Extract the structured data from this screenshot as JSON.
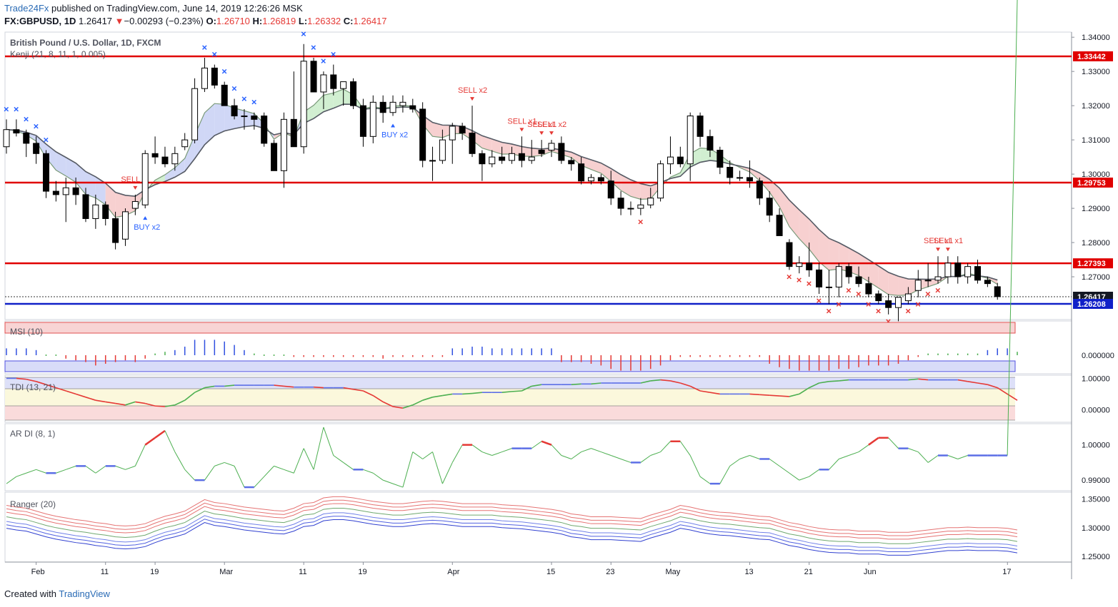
{
  "header": {
    "publisher": "Trade24Fx",
    "published_text": "published on TradingView.com, June 14, 2019 12:26:26 MSK",
    "symbol": "FX:GBPUSD, 1D",
    "last": "1.26417",
    "change_arrow": "▼",
    "change": "−0.00293 (−0.23%)",
    "o_label": "O:",
    "o_value": "1.26710",
    "h_label": "H:",
    "h_value": "1.26819",
    "l_label": "L:",
    "l_value": "1.26332",
    "c_label": "C:",
    "c_value": "1.26417"
  },
  "footer": {
    "created_with": "Created with",
    "brand": "TradingView"
  },
  "colors": {
    "level_red": "#e00000",
    "level_blue": "#1020c8",
    "bull_cloud": "#c9ecc9",
    "bear_cloud": "#f6c8c8",
    "blue_cloud": "#c8d0f4",
    "sell_marker": "#e53935",
    "buy_marker": "#2962ff"
  },
  "chart_data": [
    {
      "type": "candlestick",
      "title": "British Pound / U.S. Dollar, 1D, FXCM",
      "indicator_label": "Kenji (21, 8, 11, 1, 0.005)",
      "ylim": [
        1.2575,
        1.3415
      ],
      "y_ticks": [
        "1.34000",
        "1.33000",
        "1.32000",
        "1.31000",
        "1.30000",
        "1.29000",
        "1.28000",
        "1.27000"
      ],
      "x_ticks": [
        "Feb",
        "11",
        "19",
        "Mar",
        "11",
        "19",
        "Apr",
        "15",
        "23",
        "May",
        "13",
        "21",
        "Jun",
        "17"
      ],
      "levels": [
        {
          "label": "1.33442",
          "value": 1.33442,
          "color": "red"
        },
        {
          "label": "1.29753",
          "value": 1.29753,
          "color": "red"
        },
        {
          "label": "1.27393",
          "value": 1.27393,
          "color": "red"
        },
        {
          "label": "1.26417",
          "value": 1.26417,
          "color": "dark"
        },
        {
          "label": "1.26208",
          "value": 1.26208,
          "color": "blue"
        }
      ],
      "candles": [
        [
          1.308,
          1.316,
          1.306,
          1.313
        ],
        [
          1.313,
          1.316,
          1.311,
          1.312
        ],
        [
          1.312,
          1.313,
          1.305,
          1.309
        ],
        [
          1.309,
          1.311,
          1.303,
          1.306
        ],
        [
          1.306,
          1.307,
          1.293,
          1.295
        ],
        [
          1.295,
          1.298,
          1.292,
          1.294
        ],
        [
          1.294,
          1.299,
          1.286,
          1.296
        ],
        [
          1.296,
          1.299,
          1.291,
          1.294
        ],
        [
          1.294,
          1.296,
          1.286,
          1.287
        ],
        [
          1.287,
          1.294,
          1.284,
          1.291
        ],
        [
          1.291,
          1.292,
          1.285,
          1.287
        ],
        [
          1.287,
          1.289,
          1.278,
          1.28
        ],
        [
          1.281,
          1.29,
          1.279,
          1.289
        ],
        [
          1.29,
          1.294,
          1.288,
          1.292
        ],
        [
          1.291,
          1.307,
          1.29,
          1.306
        ],
        [
          1.306,
          1.311,
          1.303,
          1.305
        ],
        [
          1.305,
          1.308,
          1.302,
          1.303
        ],
        [
          1.303,
          1.308,
          1.301,
          1.306
        ],
        [
          1.308,
          1.312,
          1.307,
          1.31
        ],
        [
          1.31,
          1.328,
          1.309,
          1.325
        ],
        [
          1.325,
          1.334,
          1.324,
          1.331
        ],
        [
          1.331,
          1.332,
          1.325,
          1.326
        ],
        [
          1.326,
          1.327,
          1.32,
          1.32
        ],
        [
          1.32,
          1.322,
          1.316,
          1.317
        ],
        [
          1.317,
          1.319,
          1.313,
          1.317
        ],
        [
          1.317,
          1.318,
          1.313,
          1.316
        ],
        [
          1.317,
          1.318,
          1.308,
          1.309
        ],
        [
          1.309,
          1.31,
          1.301,
          1.301
        ],
        [
          1.301,
          1.318,
          1.296,
          1.316
        ],
        [
          1.316,
          1.33,
          1.308,
          1.308
        ],
        [
          1.308,
          1.338,
          1.306,
          1.333
        ],
        [
          1.333,
          1.334,
          1.324,
          1.324
        ],
        [
          1.324,
          1.33,
          1.319,
          1.329
        ],
        [
          1.329,
          1.332,
          1.323,
          1.325
        ],
        [
          1.325,
          1.327,
          1.32,
          1.327
        ],
        [
          1.327,
          1.328,
          1.319,
          1.32
        ],
        [
          1.32,
          1.322,
          1.308,
          1.311
        ],
        [
          1.311,
          1.323,
          1.309,
          1.321
        ],
        [
          1.321,
          1.323,
          1.315,
          1.318
        ],
        [
          1.318,
          1.323,
          1.317,
          1.321
        ],
        [
          1.32,
          1.323,
          1.318,
          1.321
        ],
        [
          1.32,
          1.322,
          1.318,
          1.319
        ],
        [
          1.319,
          1.321,
          1.302,
          1.304
        ],
        [
          1.304,
          1.308,
          1.298,
          1.304
        ],
        [
          1.304,
          1.313,
          1.303,
          1.31
        ],
        [
          1.31,
          1.315,
          1.303,
          1.314
        ],
        [
          1.314,
          1.315,
          1.31,
          1.312
        ],
        [
          1.312,
          1.32,
          1.305,
          1.306
        ],
        [
          1.306,
          1.307,
          1.298,
          1.303
        ],
        [
          1.303,
          1.307,
          1.302,
          1.305
        ],
        [
          1.305,
          1.308,
          1.303,
          1.304
        ],
        [
          1.304,
          1.308,
          1.303,
          1.306
        ],
        [
          1.306,
          1.311,
          1.302,
          1.304
        ],
        [
          1.304,
          1.31,
          1.303,
          1.305
        ],
        [
          1.307,
          1.31,
          1.305,
          1.306
        ],
        [
          1.307,
          1.31,
          1.305,
          1.309
        ],
        [
          1.309,
          1.311,
          1.303,
          1.304
        ],
        [
          1.304,
          1.305,
          1.301,
          1.303
        ],
        [
          1.303,
          1.305,
          1.297,
          1.298
        ],
        [
          1.298,
          1.3,
          1.297,
          1.299
        ],
        [
          1.299,
          1.3,
          1.297,
          1.298
        ],
        [
          1.298,
          1.301,
          1.291,
          1.293
        ],
        [
          1.293,
          1.295,
          1.288,
          1.29
        ],
        [
          1.29,
          1.292,
          1.288,
          1.29
        ],
        [
          1.29,
          1.293,
          1.288,
          1.291
        ],
        [
          1.291,
          1.296,
          1.29,
          1.293
        ],
        [
          1.293,
          1.304,
          1.292,
          1.303
        ],
        [
          1.303,
          1.311,
          1.3,
          1.305
        ],
        [
          1.305,
          1.308,
          1.302,
          1.303
        ],
        [
          1.303,
          1.318,
          1.298,
          1.317
        ],
        [
          1.317,
          1.318,
          1.308,
          1.311
        ],
        [
          1.311,
          1.313,
          1.305,
          1.307
        ],
        [
          1.307,
          1.308,
          1.3,
          1.302
        ],
        [
          1.302,
          1.304,
          1.297,
          1.299
        ],
        [
          1.299,
          1.301,
          1.298,
          1.299
        ],
        [
          1.299,
          1.304,
          1.296,
          1.298
        ],
        [
          1.298,
          1.299,
          1.291,
          1.293
        ],
        [
          1.293,
          1.295,
          1.286,
          1.288
        ],
        [
          1.288,
          1.29,
          1.282,
          1.282
        ],
        [
          1.28,
          1.281,
          1.272,
          1.273
        ],
        [
          1.273,
          1.276,
          1.271,
          1.274
        ],
        [
          1.274,
          1.28,
          1.27,
          1.272
        ],
        [
          1.272,
          1.274,
          1.265,
          1.267
        ],
        [
          1.267,
          1.272,
          1.262,
          1.267
        ],
        [
          1.267,
          1.274,
          1.264,
          1.273
        ],
        [
          1.273,
          1.274,
          1.268,
          1.27
        ],
        [
          1.27,
          1.273,
          1.267,
          1.268
        ],
        [
          1.268,
          1.27,
          1.264,
          1.265
        ],
        [
          1.265,
          1.266,
          1.262,
          1.263
        ],
        [
          1.263,
          1.265,
          1.259,
          1.261
        ],
        [
          1.261,
          1.264,
          1.257,
          1.264
        ],
        [
          1.263,
          1.267,
          1.262,
          1.265
        ],
        [
          1.266,
          1.272,
          1.264,
          1.269
        ],
        [
          1.269,
          1.274,
          1.267,
          1.269
        ],
        [
          1.269,
          1.276,
          1.268,
          1.27
        ],
        [
          1.27,
          1.276,
          1.268,
          1.274
        ],
        [
          1.274,
          1.276,
          1.268,
          1.27
        ],
        [
          1.27,
          1.274,
          1.268,
          1.273
        ],
        [
          1.273,
          1.275,
          1.268,
          1.269
        ],
        [
          1.269,
          1.27,
          1.267,
          1.268
        ],
        [
          1.2671,
          1.2682,
          1.2633,
          1.2642
        ]
      ],
      "annotations": [
        {
          "text": "SELL",
          "index": 13
        },
        {
          "text": "BUY x2",
          "index": 14
        },
        {
          "text": "BUY x2",
          "index": 39
        },
        {
          "text": "SELL x2",
          "index": 47
        },
        {
          "text": "SELL x1",
          "index": 52
        },
        {
          "text": "SELL x1",
          "index": 54
        },
        {
          "text": "SELL x2",
          "index": 55
        },
        {
          "text": "SELL x1",
          "index": 94
        },
        {
          "text": "SELL x1",
          "index": 95
        }
      ]
    },
    {
      "type": "bar",
      "title": "MSI (10)",
      "y_ticks": [
        "0.000000"
      ],
      "ylim": [
        -1,
        1
      ],
      "values": [
        0.4,
        0.4,
        0.4,
        0.3,
        0,
        0,
        -0.2,
        -0.3,
        -0.4,
        -0.6,
        -0.5,
        -0.4,
        -0.3,
        -0.4,
        -0.2,
        0.1,
        0.2,
        0.3,
        0.5,
        0.9,
        0.9,
        0.9,
        0.8,
        0.6,
        0.3,
        0.1,
        0,
        0,
        0,
        -0.1,
        -0.1,
        -0.1,
        -0.1,
        -0.1,
        -0.1,
        -0.1,
        -0.1,
        -0.1,
        -0.2,
        -0.1,
        -0.1,
        -0.1,
        -0.1,
        -0.1,
        -0.1,
        0.4,
        0.4,
        0.5,
        0.5,
        0.4,
        0.4,
        0.4,
        0.4,
        0.4,
        0.4,
        0.4,
        -0.4,
        -0.4,
        -0.4,
        -0.5,
        -0.6,
        -0.8,
        -0.9,
        -0.9,
        -0.9,
        -0.8,
        -0.6,
        -0.3,
        -0.1,
        -0.1,
        -0.1,
        -0.1,
        -0.1,
        -0.1,
        -0.1,
        -0.1,
        -0.1,
        -0.5,
        -0.7,
        -0.8,
        -0.9,
        -0.9,
        -0.9,
        -0.9,
        -0.8,
        -0.8,
        -0.7,
        -0.6,
        -0.6,
        -0.6,
        -0.5,
        -0.3,
        -0.1,
        0.1,
        0.1,
        0.1,
        0.1,
        0.1,
        0.1,
        0.3,
        0.4,
        0.4,
        0.2
      ]
    },
    {
      "type": "line",
      "title": "TDI (13, 21)",
      "y_ticks": [
        "1.00000",
        "0.00000"
      ],
      "ylim": [
        -0.4,
        1.1
      ],
      "values": [
        1,
        1,
        0.97,
        0.9,
        0.8,
        0.7,
        0.6,
        0.5,
        0.4,
        0.3,
        0.25,
        0.2,
        0.15,
        0.25,
        0.2,
        0.12,
        0.1,
        0.15,
        0.3,
        0.55,
        0.7,
        0.75,
        0.75,
        0.78,
        0.78,
        0.78,
        0.78,
        0.78,
        0.75,
        0.72,
        0.72,
        0.72,
        0.7,
        0.7,
        0.7,
        0.65,
        0.6,
        0.45,
        0.25,
        0.1,
        0.05,
        0.15,
        0.3,
        0.4,
        0.45,
        0.5,
        0.5,
        0.52,
        0.55,
        0.55,
        0.55,
        0.58,
        0.6,
        0.75,
        0.8,
        0.8,
        0.8,
        0.8,
        0.82,
        0.82,
        0.85,
        0.85,
        0.85,
        0.85,
        0.85,
        0.92,
        0.95,
        0.92,
        0.85,
        0.75,
        0.6,
        0.55,
        0.5,
        0.5,
        0.5,
        0.5,
        0.48,
        0.46,
        0.44,
        0.42,
        0.5,
        0.7,
        0.85,
        0.9,
        0.92,
        0.95,
        0.95,
        0.95,
        0.95,
        0.95,
        0.95,
        0.95,
        0.98,
        0.95,
        0.95,
        0.95,
        0.95,
        0.9,
        0.85,
        0.8,
        0.7,
        0.5,
        0.3
      ]
    },
    {
      "type": "line",
      "title": "AR DI (8, 1)",
      "y_ticks": [
        "1.00000",
        "0.99000"
      ],
      "ylim": [
        0.987,
        1.006
      ],
      "values": [
        0.989,
        0.991,
        0.992,
        0.993,
        0.992,
        0.992,
        0.993,
        0.994,
        0.994,
        0.992,
        0.994,
        0.994,
        0.993,
        0.994,
        1.0,
        1.002,
        1.004,
        0.998,
        0.993,
        0.99,
        0.99,
        0.994,
        0.995,
        0.994,
        0.988,
        0.988,
        0.991,
        0.994,
        0.993,
        0.992,
        0.999,
        0.993,
        1.005,
        0.997,
        0.995,
        0.993,
        0.993,
        0.992,
        0.99,
        0.989,
        0.988,
        0.998,
        0.996,
        0.998,
        0.989,
        0.995,
        1.0,
        1.0,
        0.998,
        0.997,
        0.998,
        0.999,
        0.999,
        0.999,
        1.001,
        1.0,
        0.997,
        0.996,
        0.998,
        0.999,
        0.998,
        0.997,
        0.996,
        0.995,
        0.995,
        0.997,
        0.998,
        1.001,
        1.001,
        0.997,
        0.991,
        0.989,
        0.989,
        0.994,
        0.996,
        0.997,
        0.996,
        0.996,
        0.994,
        0.992,
        0.99,
        0.991,
        0.993,
        0.993,
        0.996,
        0.997,
        0.998,
        1.0,
        1.002,
        1.002,
        0.999,
        0.999,
        0.998,
        0.995,
        0.997,
        0.997,
        0.996,
        0.997,
        0.997,
        0.997,
        0.997,
        0.997
      ]
    },
    {
      "type": "line",
      "title": "Ranger (20)",
      "y_ticks": [
        "1.35000",
        "1.30000",
        "1.25000"
      ],
      "ylim": [
        1.24,
        1.362
      ],
      "values": [
        1.315,
        1.312,
        1.31,
        1.305,
        1.3,
        1.296,
        1.293,
        1.29,
        1.288,
        1.285,
        1.283,
        1.28,
        1.279,
        1.28,
        1.283,
        1.29,
        1.296,
        1.3,
        1.305,
        1.315,
        1.325,
        1.32,
        1.318,
        1.315,
        1.312,
        1.31,
        1.308,
        1.306,
        1.305,
        1.31,
        1.318,
        1.32,
        1.328,
        1.33,
        1.33,
        1.328,
        1.325,
        1.322,
        1.32,
        1.318,
        1.318,
        1.32,
        1.322,
        1.323,
        1.322,
        1.32,
        1.318,
        1.318,
        1.318,
        1.318,
        1.316,
        1.315,
        1.314,
        1.312,
        1.31,
        1.308,
        1.305,
        1.3,
        1.298,
        1.295,
        1.295,
        1.295,
        1.294,
        1.293,
        1.292,
        1.298,
        1.303,
        1.308,
        1.315,
        1.312,
        1.308,
        1.305,
        1.303,
        1.302,
        1.3,
        1.298,
        1.296,
        1.295,
        1.29,
        1.285,
        1.282,
        1.278,
        1.275,
        1.273,
        1.272,
        1.272,
        1.27,
        1.27,
        1.27,
        1.268,
        1.268,
        1.268,
        1.27,
        1.272,
        1.274,
        1.276,
        1.276,
        1.277,
        1.276,
        1.276,
        1.276,
        1.275,
        1.272
      ]
    }
  ]
}
